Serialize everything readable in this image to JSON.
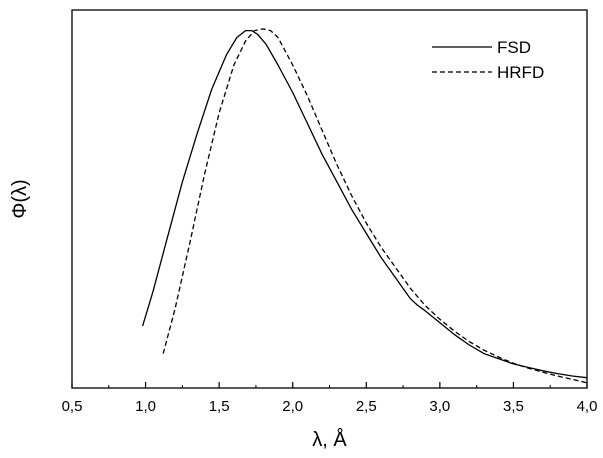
{
  "chart_data": {
    "type": "line",
    "title": "",
    "xlabel": "λ, Å",
    "ylabel": "Φ(λ)",
    "xlim": [
      0.5,
      4.0
    ],
    "ylim": [
      0,
      1.1
    ],
    "xticks": [
      0.5,
      1.0,
      1.5,
      2.0,
      2.5,
      3.0,
      3.5,
      4.0
    ],
    "xtick_labels": [
      "0,5",
      "1,0",
      "1,5",
      "2,0",
      "2,5",
      "3,0",
      "3,5",
      "4,0"
    ],
    "yticks_labeled": false,
    "grid": false,
    "legend": "top-right",
    "series": [
      {
        "name": "FSD",
        "style": "solid",
        "color": "#000000",
        "x": [
          0.98,
          1.05,
          1.15,
          1.25,
          1.35,
          1.45,
          1.55,
          1.62,
          1.68,
          1.72,
          1.76,
          1.82,
          1.9,
          2.0,
          2.1,
          2.2,
          2.3,
          2.4,
          2.5,
          2.6,
          2.7,
          2.8,
          2.85,
          2.9,
          3.0,
          3.1,
          3.2,
          3.3,
          3.4,
          3.5,
          3.6,
          3.7,
          3.8,
          3.9,
          4.0
        ],
        "y": [
          0.18,
          0.28,
          0.44,
          0.6,
          0.74,
          0.87,
          0.97,
          1.02,
          1.04,
          1.04,
          1.03,
          1.0,
          0.94,
          0.86,
          0.77,
          0.68,
          0.6,
          0.52,
          0.45,
          0.38,
          0.32,
          0.26,
          0.24,
          0.225,
          0.19,
          0.155,
          0.125,
          0.1,
          0.085,
          0.07,
          0.06,
          0.05,
          0.042,
          0.035,
          0.03
        ]
      },
      {
        "name": "HRFD",
        "style": "dashed",
        "color": "#000000",
        "x": [
          1.12,
          1.2,
          1.3,
          1.4,
          1.5,
          1.6,
          1.68,
          1.74,
          1.8,
          1.85,
          1.9,
          2.0,
          2.1,
          2.2,
          2.3,
          2.4,
          2.5,
          2.6,
          2.7,
          2.8,
          2.9,
          3.0,
          3.1,
          3.2,
          3.3,
          3.4,
          3.5,
          3.6,
          3.7,
          3.8,
          3.9,
          4.0
        ],
        "y": [
          0.1,
          0.23,
          0.42,
          0.62,
          0.8,
          0.94,
          1.01,
          1.04,
          1.045,
          1.04,
          1.02,
          0.94,
          0.85,
          0.75,
          0.65,
          0.56,
          0.48,
          0.41,
          0.35,
          0.29,
          0.24,
          0.2,
          0.165,
          0.135,
          0.11,
          0.09,
          0.072,
          0.058,
          0.046,
          0.035,
          0.025,
          0.015
        ]
      }
    ]
  }
}
